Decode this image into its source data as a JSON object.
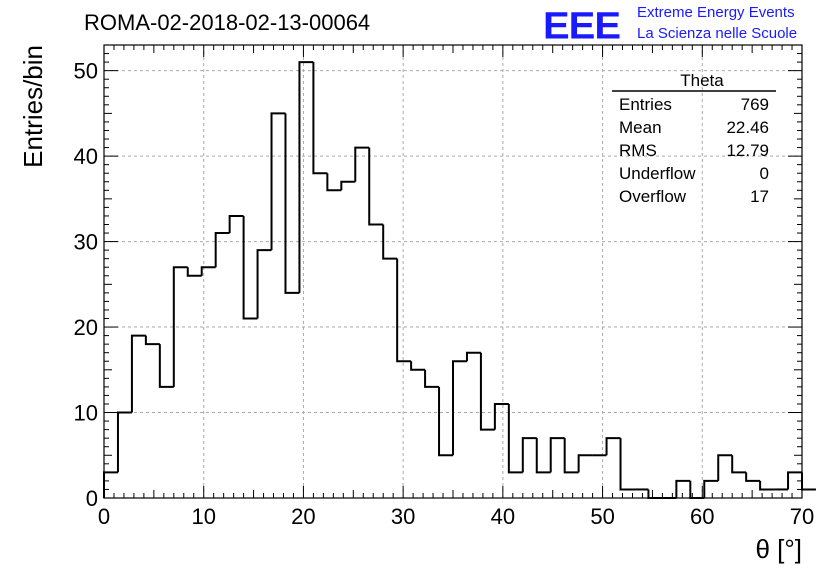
{
  "header": {
    "title": "ROMA-02-2018-02-13-00064",
    "logo_text": "EEE",
    "brand_line1": "Extreme Energy Events",
    "brand_line2": "La Scienza nelle Scuole",
    "brand_color": "#1a1aff"
  },
  "stats_box": {
    "title": "Theta",
    "rows": [
      {
        "label": "Entries",
        "value": "769"
      },
      {
        "label": "Mean",
        "value": "22.46"
      },
      {
        "label": "RMS",
        "value": "12.79"
      },
      {
        "label": "Underflow",
        "value": "0"
      },
      {
        "label": "Overflow",
        "value": "17"
      }
    ]
  },
  "chart_data": {
    "type": "histogram",
    "xlabel": "θ [°]",
    "ylabel": "Entries/bin",
    "xlim": [
      0,
      70
    ],
    "ylim": [
      0,
      53
    ],
    "grid": true,
    "bin_width": 1.4,
    "bin_edges_start": 0,
    "x_ticks": [
      0,
      10,
      20,
      30,
      40,
      50,
      60,
      70
    ],
    "y_ticks": [
      0,
      10,
      20,
      30,
      40,
      50
    ],
    "values": [
      3,
      10,
      19,
      18,
      13,
      27,
      26,
      27,
      31,
      33,
      21,
      29,
      45,
      24,
      51,
      38,
      36,
      37,
      41,
      32,
      28,
      16,
      15,
      13,
      5,
      16,
      17,
      8,
      11,
      3,
      7,
      3,
      7,
      3,
      5,
      5,
      7,
      1,
      1,
      0,
      0,
      2,
      0,
      2,
      5,
      3,
      2,
      1,
      1,
      3,
      1
    ]
  }
}
